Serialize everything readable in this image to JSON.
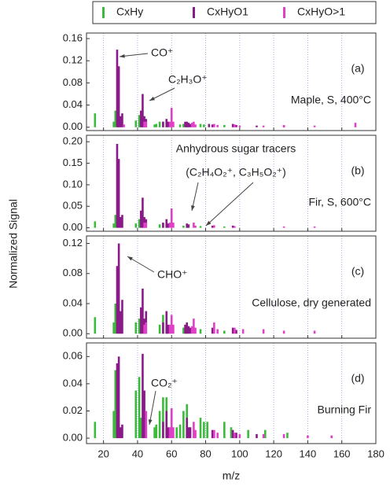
{
  "chart_data": [
    {
      "type": "bar",
      "label": "(a)",
      "sample": "Maple, S, 400°C",
      "annotations": [
        "CO⁺",
        "C₂H₃O⁺"
      ],
      "ylabel": "Normalized Signal",
      "xlim": [
        10,
        180
      ],
      "xticks": [
        20,
        40,
        60,
        80,
        100,
        120,
        140,
        160,
        180
      ],
      "grid": true,
      "ylim": [
        -0.006,
        0.17
      ],
      "yticks": [
        {
          "value": 0,
          "label": "0.00"
        },
        0.04,
        0.08,
        0.12,
        0.16
      ],
      "series": [
        {
          "name": "CxHy",
          "color": "#3cba3c",
          "x": [
            15,
            26,
            27,
            29,
            39,
            41,
            42,
            43,
            50,
            51,
            53,
            55,
            57,
            65,
            67,
            69,
            77,
            79,
            91
          ],
          "values": [
            0.025,
            0.01,
            0.03,
            0.02,
            0.012,
            0.022,
            0.01,
            0.008,
            0.005,
            0.006,
            0.01,
            0.01,
            0.008,
            0.005,
            0.006,
            0.006,
            0.006,
            0.005,
            0.004
          ]
        },
        {
          "name": "CxHyO1",
          "color": "#8b1a89",
          "x": [
            28,
            29,
            30,
            31,
            42,
            43,
            44,
            45,
            55,
            57,
            58,
            68,
            69,
            70,
            71,
            82,
            84,
            96,
            98,
            110,
            126
          ],
          "values": [
            0.14,
            0.11,
            0.02,
            0.025,
            0.03,
            0.06,
            0.02,
            0.015,
            0.01,
            0.015,
            0.01,
            0.01,
            0.01,
            0.008,
            0.006,
            0.006,
            0.005,
            0.006,
            0.004,
            0.003,
            0.003
          ]
        },
        {
          "name": "CxHyO>1",
          "color": "#e040c8",
          "x": [
            32,
            44,
            45,
            59,
            60,
            61,
            72,
            73,
            74,
            85,
            87,
            97,
            100,
            114,
            126,
            144,
            168
          ],
          "values": [
            0.005,
            0.01,
            0.01,
            0.01,
            0.035,
            0.01,
            0.008,
            0.01,
            0.005,
            0.006,
            0.004,
            0.005,
            0.003,
            0.003,
            0.004,
            0.003,
            0.008
          ]
        }
      ]
    },
    {
      "type": "bar",
      "label": "(b)",
      "sample": "Fir, S, 600°C",
      "annotations": [
        "Anhydrous sugar tracers",
        "(C₂H₄O₂⁺, C₃H₅O₂⁺)"
      ],
      "xlim": [
        10,
        180
      ],
      "xticks": [
        20,
        40,
        60,
        80,
        100,
        120,
        140,
        160,
        180
      ],
      "grid": true,
      "ylim": [
        -0.008,
        0.215
      ],
      "yticks": [
        {
          "value": 0,
          "label": "0.00"
        },
        0.05,
        {
          "value": 0.1,
          "label": "0.10"
        },
        0.15,
        {
          "value": 0.2,
          "label": "0.20"
        }
      ],
      "series": [
        {
          "color": "#3cba3c",
          "x": [
            15,
            26,
            27,
            29,
            39,
            41,
            43,
            53,
            55,
            57,
            67,
            69,
            77,
            91
          ],
          "values": [
            0.015,
            0.01,
            0.03,
            0.025,
            0.01,
            0.02,
            0.01,
            0.008,
            0.01,
            0.008,
            0.005,
            0.005,
            0.004,
            0.003
          ]
        },
        {
          "color": "#8b1a89",
          "x": [
            28,
            29,
            30,
            31,
            42,
            43,
            44,
            45,
            55,
            57,
            58,
            69,
            70,
            84,
            96
          ],
          "values": [
            0.195,
            0.16,
            0.025,
            0.03,
            0.04,
            0.07,
            0.025,
            0.02,
            0.012,
            0.02,
            0.01,
            0.01,
            0.008,
            0.005,
            0.005
          ]
        },
        {
          "color": "#e040c8",
          "x": [
            44,
            45,
            59,
            60,
            61,
            73,
            74,
            85,
            97,
            126,
            144
          ],
          "values": [
            0.012,
            0.012,
            0.012,
            0.045,
            0.012,
            0.012,
            0.005,
            0.006,
            0.004,
            0.003,
            0.003
          ]
        }
      ]
    },
    {
      "type": "bar",
      "label": "(c)",
      "sample": "Cellulose, dry generated",
      "annotations": [
        "CHO⁺"
      ],
      "xlim": [
        10,
        180
      ],
      "xticks": [
        20,
        40,
        60,
        80,
        100,
        120,
        140,
        160,
        180
      ],
      "grid": true,
      "ylim": [
        -0.006,
        0.13
      ],
      "yticks": [
        {
          "value": 0,
          "label": "0.00"
        },
        0.04,
        0.08,
        0.12
      ],
      "series": [
        {
          "color": "#3cba3c",
          "x": [
            15,
            26,
            27,
            39,
            41,
            42,
            53,
            55,
            57,
            67,
            69,
            77,
            91
          ],
          "values": [
            0.022,
            0.015,
            0.04,
            0.015,
            0.02,
            0.012,
            0.012,
            0.025,
            0.01,
            0.008,
            0.01,
            0.006,
            0.004
          ]
        },
        {
          "color": "#8b1a89",
          "x": [
            28,
            29,
            30,
            31,
            42,
            43,
            44,
            45,
            55,
            57,
            58,
            68,
            69,
            70,
            71,
            84,
            96,
            98
          ],
          "values": [
            0.09,
            0.12,
            0.03,
            0.045,
            0.035,
            0.06,
            0.02,
            0.03,
            0.015,
            0.03,
            0.012,
            0.012,
            0.015,
            0.01,
            0.008,
            0.008,
            0.008,
            0.005
          ]
        },
        {
          "color": "#e040c8",
          "x": [
            44,
            45,
            59,
            60,
            61,
            72,
            73,
            74,
            85,
            87,
            97,
            102,
            114,
            126,
            144
          ],
          "values": [
            0.012,
            0.015,
            0.012,
            0.025,
            0.012,
            0.01,
            0.02,
            0.008,
            0.015,
            0.006,
            0.008,
            0.006,
            0.006,
            0.004,
            0.004
          ]
        }
      ]
    },
    {
      "type": "bar",
      "label": "(d)",
      "sample": "Burning Fir",
      "annotations": [
        "CO₂⁺"
      ],
      "xlabel": "m/z",
      "xlim": [
        10,
        180
      ],
      "xticks": [
        20,
        40,
        60,
        80,
        100,
        120,
        140,
        160,
        180
      ],
      "grid": true,
      "ylim": [
        -0.004,
        0.07
      ],
      "yticks": [
        {
          "value": 0,
          "label": "0.00"
        },
        0.02,
        0.04,
        0.06
      ],
      "series": [
        {
          "color": "#3cba3c",
          "x": [
            15,
            26,
            27,
            39,
            41,
            42,
            50,
            51,
            53,
            55,
            57,
            63,
            65,
            67,
            69,
            77,
            79,
            81,
            91,
            95,
            105,
            115,
            128
          ],
          "values": [
            0.012,
            0.02,
            0.05,
            0.035,
            0.045,
            0.015,
            0.008,
            0.01,
            0.02,
            0.03,
            0.03,
            0.008,
            0.01,
            0.02,
            0.025,
            0.015,
            0.012,
            0.012,
            0.012,
            0.008,
            0.006,
            0.006,
            0.004
          ]
        },
        {
          "color": "#8b1a89",
          "x": [
            28,
            29,
            30,
            31,
            43,
            44,
            45,
            55,
            57,
            58,
            69,
            70,
            71,
            84,
            96,
            98,
            110
          ],
          "values": [
            0.055,
            0.06,
            0.008,
            0.01,
            0.062,
            0.035,
            0.01,
            0.012,
            0.02,
            0.008,
            0.015,
            0.008,
            0.008,
            0.006,
            0.006,
            0.004,
            0.003
          ]
        },
        {
          "color": "#e040c8",
          "x": [
            45,
            59,
            60,
            61,
            73,
            74,
            85,
            87,
            97,
            100,
            114,
            126,
            140,
            154
          ],
          "values": [
            0.02,
            0.008,
            0.022,
            0.008,
            0.012,
            0.006,
            0.006,
            0.004,
            0.004,
            0.003,
            0.003,
            0.003,
            0.002,
            0.002
          ]
        }
      ]
    }
  ]
}
